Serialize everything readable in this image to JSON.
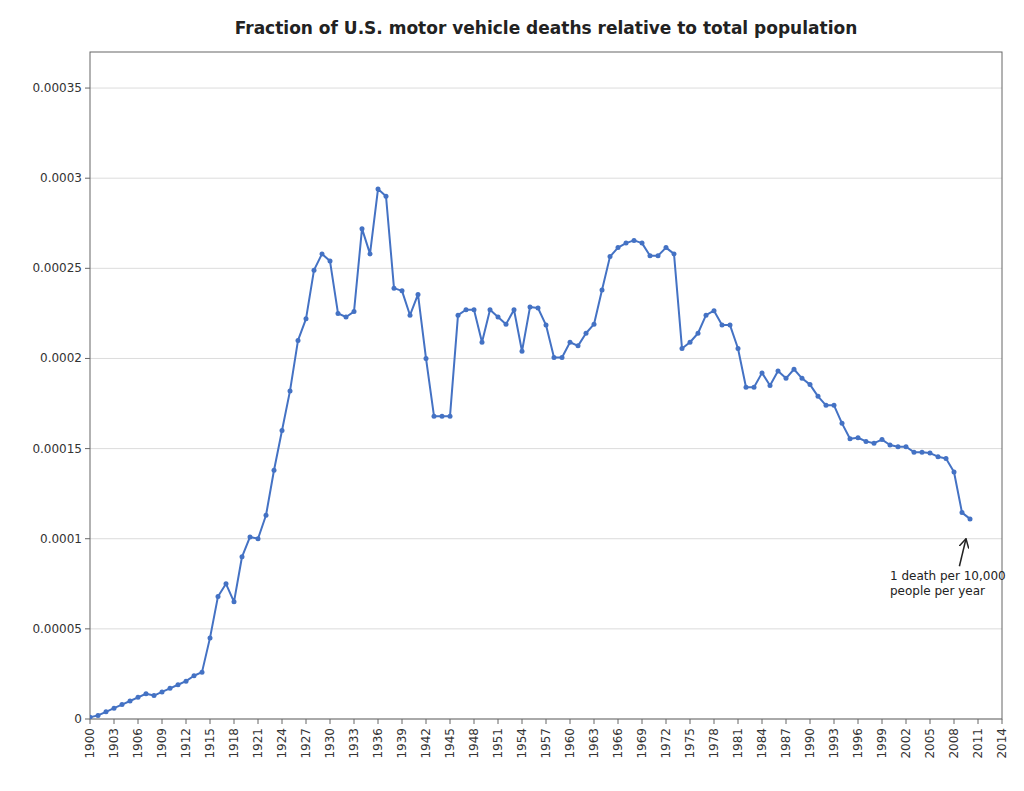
{
  "chart_data": {
    "type": "line",
    "title": "Fraction of U.S. motor vehicle deaths relative to total population",
    "color": "#4472C4",
    "marker": "circle",
    "grid": true,
    "x": [
      1900,
      1901,
      1902,
      1903,
      1904,
      1905,
      1906,
      1907,
      1908,
      1909,
      1910,
      1911,
      1912,
      1913,
      1914,
      1915,
      1916,
      1917,
      1918,
      1919,
      1920,
      1921,
      1922,
      1923,
      1924,
      1925,
      1926,
      1927,
      1928,
      1929,
      1930,
      1931,
      1932,
      1933,
      1934,
      1935,
      1936,
      1937,
      1938,
      1939,
      1940,
      1941,
      1942,
      1943,
      1944,
      1945,
      1946,
      1947,
      1948,
      1949,
      1950,
      1951,
      1952,
      1953,
      1954,
      1955,
      1956,
      1957,
      1958,
      1959,
      1960,
      1961,
      1962,
      1963,
      1964,
      1965,
      1966,
      1967,
      1968,
      1969,
      1970,
      1971,
      1972,
      1973,
      1974,
      1975,
      1976,
      1977,
      1978,
      1979,
      1980,
      1981,
      1982,
      1983,
      1984,
      1985,
      1986,
      1987,
      1988,
      1989,
      1990,
      1991,
      1992,
      1993,
      1994,
      1995,
      1996,
      1997,
      1998,
      1999,
      2000,
      2001,
      2002,
      2003,
      2004,
      2005,
      2006,
      2007,
      2008,
      2009,
      2010
    ],
    "values": [
      1e-06,
      2e-06,
      4e-06,
      6e-06,
      8e-06,
      1e-05,
      1.2e-05,
      1.4e-05,
      1.3e-05,
      1.5e-05,
      1.7e-05,
      1.9e-05,
      2.1e-05,
      2.4e-05,
      2.6e-05,
      4.5e-05,
      6.8e-05,
      7.5e-05,
      6.5e-05,
      9e-05,
      0.000101,
      0.0001,
      0.000113,
      0.000138,
      0.00016,
      0.000182,
      0.00021,
      0.000222,
      0.000249,
      0.000258,
      0.000254,
      0.000225,
      0.000223,
      0.000226,
      0.000272,
      0.000258,
      0.000294,
      0.00029,
      0.000239,
      0.0002375,
      0.000224,
      0.0002355,
      0.0002,
      0.000168,
      0.000168,
      0.000168,
      0.000224,
      0.000227,
      0.000227,
      0.000209,
      0.000227,
      0.000223,
      0.000219,
      0.000227,
      0.000204,
      0.0002285,
      0.000228,
      0.0002185,
      0.0002005,
      0.0002005,
      0.000209,
      0.000207,
      0.000214,
      0.000219,
      0.000238,
      0.0002565,
      0.0002615,
      0.000264,
      0.0002655,
      0.000264,
      0.000257,
      0.000257,
      0.0002615,
      0.000258,
      0.0002055,
      0.000209,
      0.000214,
      0.000224,
      0.0002265,
      0.0002185,
      0.0002185,
      0.0002055,
      0.000184,
      0.000184,
      0.000192,
      0.000185,
      0.000193,
      0.000189,
      0.000194,
      0.000189,
      0.0001855,
      0.000179,
      0.000174,
      0.000174,
      0.000164,
      0.0001555,
      0.000156,
      0.000154,
      0.000153,
      0.000155,
      0.000152,
      0.000151,
      0.000151,
      0.000148,
      0.000148,
      0.0001475,
      0.0001455,
      0.0001445,
      0.000137,
      0.0001145,
      0.000111
    ],
    "xlim": [
      1900,
      2014
    ],
    "ylim": [
      0,
      0.00037
    ],
    "xticks": [
      1900,
      1903,
      1906,
      1909,
      1912,
      1915,
      1918,
      1921,
      1924,
      1927,
      1930,
      1933,
      1936,
      1939,
      1942,
      1945,
      1948,
      1951,
      1954,
      1957,
      1960,
      1963,
      1966,
      1969,
      1972,
      1975,
      1978,
      1981,
      1984,
      1987,
      1990,
      1993,
      1996,
      1999,
      2002,
      2005,
      2008,
      2011,
      2014
    ],
    "yticks": [
      0,
      5e-05,
      0.0001,
      0.00015,
      0.0002,
      0.00025,
      0.0003,
      0.00035
    ],
    "annotation": {
      "text": "1 death per 10,000\npeople per year",
      "x": 2009.5,
      "y": 0.0001,
      "text_x": 2000,
      "text_y": 7.5e-05
    }
  }
}
